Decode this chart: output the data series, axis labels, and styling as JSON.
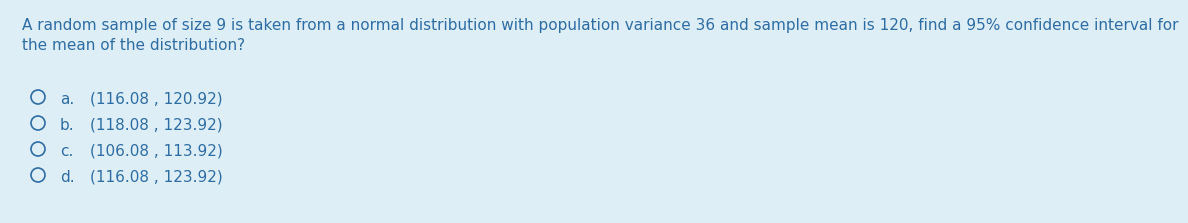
{
  "background_color": "#ddeef6",
  "question_line1": "A random sample of size 9 is taken from a normal distribution with population variance 36 and sample mean is 120, find a 95% confidence interval for",
  "question_line2": "the mean of the distribution?",
  "options": [
    {
      "label": "a.",
      "text": "(116.08 , 120.92)"
    },
    {
      "label": "b.",
      "text": "(118.08 , 123.92)"
    },
    {
      "label": "c.",
      "text": "(106.08 , 113.92)"
    },
    {
      "label": "d.",
      "text": "(116.08 , 123.92)"
    }
  ],
  "text_color": "#2e6da4",
  "font_size_question": 11.0,
  "font_size_options": 11.0,
  "circle_color": "#2e6da4"
}
